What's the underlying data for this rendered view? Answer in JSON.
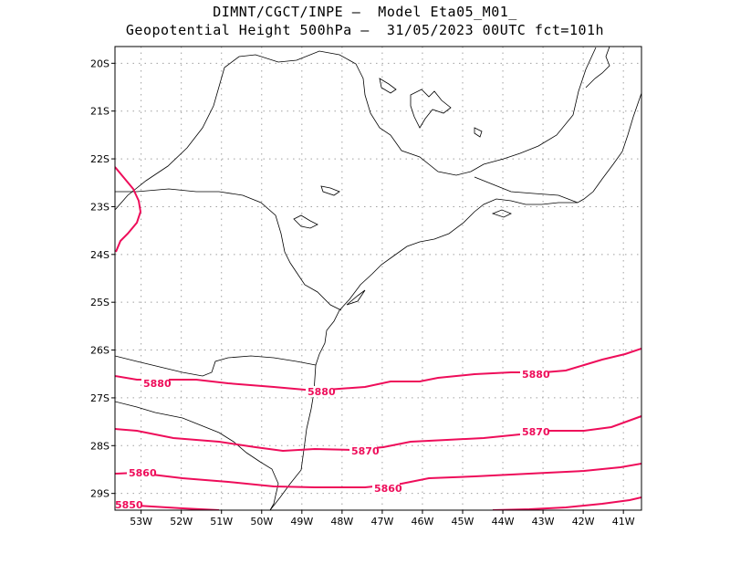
{
  "title": {
    "line1": "DIMNT/CGCT/INPE –  Model Eta05_M01_",
    "line2": "Geopotential Height 500hPa –  31/05/2023 00UTC fct=101h"
  },
  "map": {
    "lon_range": [
      -53.65,
      -40.55
    ],
    "lat_range": [
      -29.35,
      -19.65
    ],
    "x_ticks": [
      "53W",
      "52W",
      "51W",
      "50W",
      "49W",
      "48W",
      "47W",
      "46W",
      "45W",
      "44W",
      "43W",
      "42W",
      "41W"
    ],
    "y_ticks": [
      "20S",
      "21S",
      "22S",
      "23S",
      "24S",
      "25S",
      "26S",
      "27S",
      "28S",
      "29S"
    ],
    "grid": "dotted",
    "contour_color": "#ee0d5a",
    "contour_labels": [
      "5880",
      "5880",
      "5880",
      "5870",
      "5870",
      "5860",
      "5860",
      "5850"
    ]
  }
}
